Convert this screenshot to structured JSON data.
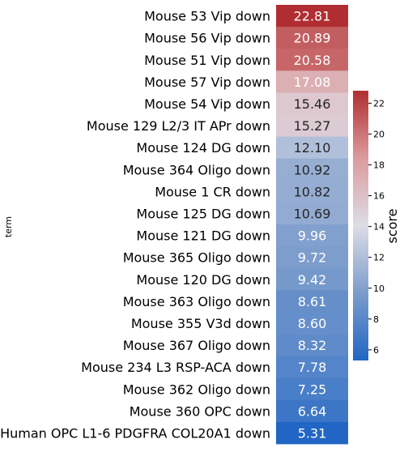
{
  "chart_data": {
    "type": "heatmap",
    "ylabel": "term",
    "colorbar": {
      "label": "score",
      "ticks": [
        6,
        8,
        10,
        12,
        14,
        16,
        18,
        20,
        22
      ],
      "range": [
        5.31,
        22.81
      ],
      "cmap_low": "#2166c4",
      "cmap_mid": "#dcdde6",
      "cmap_high": "#b02e31"
    },
    "rows": [
      {
        "term": "Mouse 53 Vip down",
        "score": 22.81,
        "label": "22.81"
      },
      {
        "term": "Mouse 56 Vip down",
        "score": 20.89,
        "label": "20.89"
      },
      {
        "term": "Mouse 51 Vip down",
        "score": 20.58,
        "label": "20.58"
      },
      {
        "term": "Mouse 57 Vip down",
        "score": 17.08,
        "label": "17.08"
      },
      {
        "term": "Mouse 54 Vip down",
        "score": 15.46,
        "label": "15.46"
      },
      {
        "term": "Mouse 129 L2/3 IT APr down",
        "score": 15.27,
        "label": "15.27"
      },
      {
        "term": "Mouse 124 DG down",
        "score": 12.1,
        "label": "12.10"
      },
      {
        "term": "Mouse 364 Oligo down",
        "score": 10.92,
        "label": "10.92"
      },
      {
        "term": "Mouse 1 CR down",
        "score": 10.82,
        "label": "10.82"
      },
      {
        "term": "Mouse 125 DG down",
        "score": 10.69,
        "label": "10.69"
      },
      {
        "term": "Mouse 121 DG down",
        "score": 9.96,
        "label": "9.96"
      },
      {
        "term": "Mouse 365 Oligo down",
        "score": 9.72,
        "label": "9.72"
      },
      {
        "term": "Mouse 120 DG down",
        "score": 9.42,
        "label": "9.42"
      },
      {
        "term": "Mouse 363 Oligo down",
        "score": 8.61,
        "label": "8.61"
      },
      {
        "term": "Mouse 355 V3d down",
        "score": 8.6,
        "label": "8.60"
      },
      {
        "term": "Mouse 367 Oligo down",
        "score": 8.32,
        "label": "8.32"
      },
      {
        "term": "Mouse 234 L3 RSP-ACA down",
        "score": 7.78,
        "label": "7.78"
      },
      {
        "term": "Mouse 362 Oligo down",
        "score": 7.25,
        "label": "7.25"
      },
      {
        "term": "Mouse 360 OPC down",
        "score": 6.64,
        "label": "6.64"
      },
      {
        "term": "Human OPC L1-6 PDGFRA COL20A1 down",
        "score": 5.31,
        "label": "5.31"
      }
    ]
  }
}
